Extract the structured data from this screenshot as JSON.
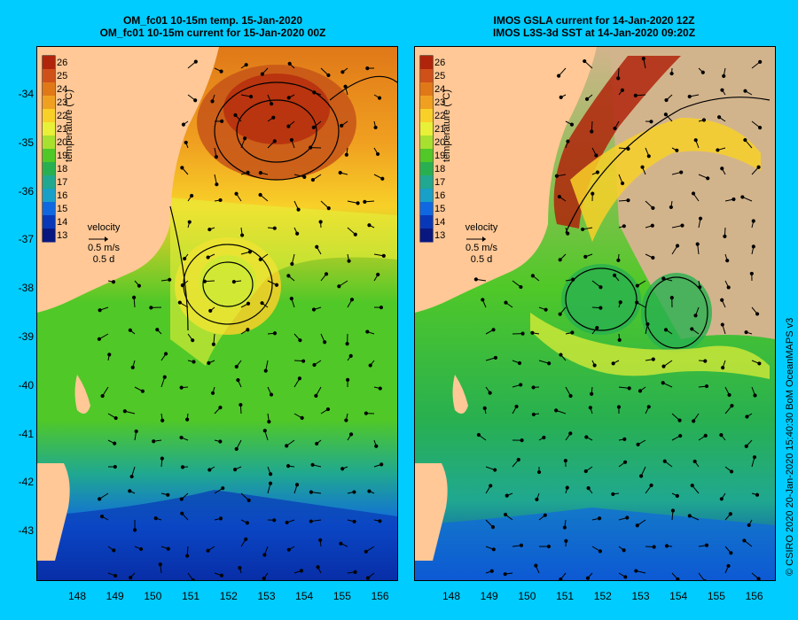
{
  "titles": {
    "left_line1": "OM_fc01 10-15m temp. 15-Jan-2020",
    "left_line2": "OM_fc01 10-15m current for 15-Jan-2020 00Z",
    "right_line1": "IMOS GSLA current for 14-Jan-2020 12Z",
    "right_line2": "IMOS L3S-3d SST at 14-Jan-2020 09:20Z"
  },
  "axes": {
    "lat_ticks": [
      "-34",
      "-35",
      "-36",
      "-37",
      "-38",
      "-39",
      "-40",
      "-41",
      "-42",
      "-43"
    ],
    "lon_ticks": [
      "148",
      "149",
      "150",
      "151",
      "152",
      "153",
      "154",
      "155",
      "156"
    ]
  },
  "colorbar": {
    "title": "temperature (°C)",
    "labels": [
      "26",
      "25",
      "24",
      "23",
      "22",
      "21",
      "20",
      "19",
      "18",
      "17",
      "16",
      "15",
      "14",
      "13"
    ],
    "colors": [
      "#b0240c",
      "#d0501a",
      "#e07818",
      "#f0a020",
      "#f8d028",
      "#e8f038",
      "#a8e030",
      "#50c828",
      "#28b050",
      "#20a890",
      "#18a0c8",
      "#1068e0",
      "#0838b8",
      "#081880"
    ]
  },
  "velocity_legend": {
    "title": "velocity",
    "speed": "0.5 m/s",
    "duration": "0.5 d"
  },
  "colors": {
    "background": "#00ccff",
    "land": "#ffc896",
    "no_data": "#d2b48c"
  },
  "copyright": "© CSIRO 2020   20-Jan-2020 15:40:30 BoM OceanMAPS v3"
}
